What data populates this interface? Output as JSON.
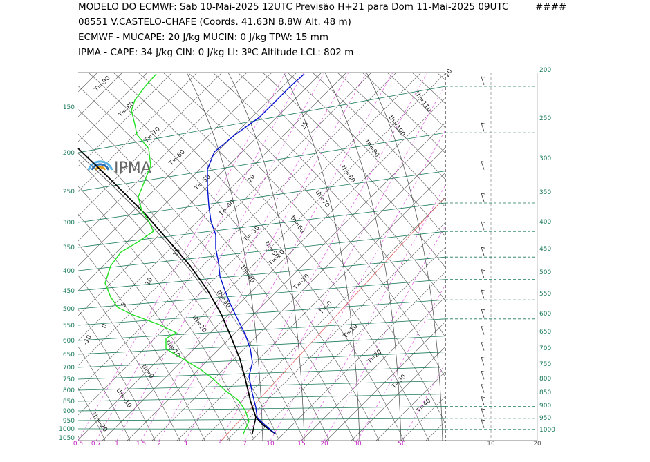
{
  "header": {
    "lines": [
      "MODELO DO ECMWF:  Sab  10-Mai-2025 12UTC  Previsão H+21  para  Dom 11-Mai-2025 09UTC",
      "08551   V.CASTELO-CHAFE  (Coords.  41.63N 8.8W   Alt. 48 m)",
      "ECMWF - MUCAPE: 20 J/kg   MUCIN: 0 J/kg   TPW: 15 mm",
      "IPMA - CAPE: 34 J/kg   CIN: 0 J/kg   LI: 3ºC   Altitude LCL: 802 m"
    ],
    "tag": "####"
  },
  "logo": "IPMA",
  "left_pressures": [
    "150",
    "200",
    "250",
    "300",
    "350",
    "400",
    "450",
    "500",
    "550",
    "600",
    "650",
    "700",
    "750",
    "800",
    "850",
    "900",
    "950",
    "1000",
    "1050"
  ],
  "right_pressures": [
    "200",
    "250",
    "300",
    "350",
    "400",
    "450",
    "500",
    "550",
    "600",
    "650",
    "700",
    "750",
    "800",
    "850",
    "900",
    "950",
    "1000"
  ],
  "mixing_ratios": [
    "0.5",
    "0.7",
    "1",
    "1.5",
    "2",
    "3",
    "5",
    "7",
    "10",
    "15",
    "20",
    "30",
    "50"
  ],
  "wind_scale": [
    "10",
    "20"
  ],
  "isotherm_labels": [
    "T=-90",
    "T=-80",
    "T=-70",
    "T=-60",
    "T=-50",
    "T=-40",
    "T=-30",
    "T=-20",
    "T=-10",
    "T=-0",
    "T=10",
    "T=20",
    "T=30",
    "T=40"
  ],
  "theta_labels": [
    "th=110",
    "th=100",
    "th=90",
    "th=80",
    "th=70",
    "th=60",
    "th=50",
    "th=40",
    "th=30",
    "th=20",
    "th=10",
    "th=0",
    "th=-10",
    "th=-20"
  ],
  "moist_labels": [
    "25",
    "20",
    "15",
    "10",
    "5",
    "0",
    "-10",
    "20"
  ]
}
